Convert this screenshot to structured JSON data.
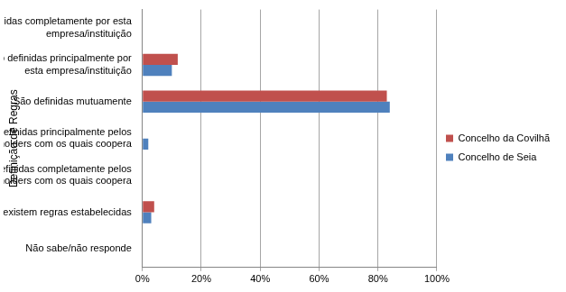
{
  "chart_data": {
    "type": "bar",
    "orientation": "horizontal",
    "y_label": "Definição de Regras",
    "categories": [
      "São definidas completamente por esta empresa/instituição",
      "São definidas principalmente por esta empresa/instituição",
      "São definidas mutuamente",
      "São definidas principalmente pelos stakeholders com os quais coopera",
      "São definidas completamente pelos stakeholders com os quais coopera",
      "Não existem regras estabelecidas",
      "Não sabe/não responde"
    ],
    "series": [
      {
        "name": "Concelho da Covilhã",
        "color": "#c0504d",
        "values": [
          0,
          12,
          83,
          0,
          0,
          4,
          0
        ]
      },
      {
        "name": "Concelho de Seia",
        "color": "#4f81bd",
        "values": [
          0,
          10,
          84,
          2,
          0,
          3,
          0
        ]
      }
    ],
    "xlim": [
      0,
      100
    ],
    "xticks": [
      {
        "value": 0,
        "label": "0%"
      },
      {
        "value": 20,
        "label": "20%"
      },
      {
        "value": 40,
        "label": "40%"
      },
      {
        "value": 60,
        "label": "60%"
      },
      {
        "value": 80,
        "label": "80%"
      },
      {
        "value": 100,
        "label": "100%"
      }
    ],
    "grid": true,
    "legend": "right"
  }
}
